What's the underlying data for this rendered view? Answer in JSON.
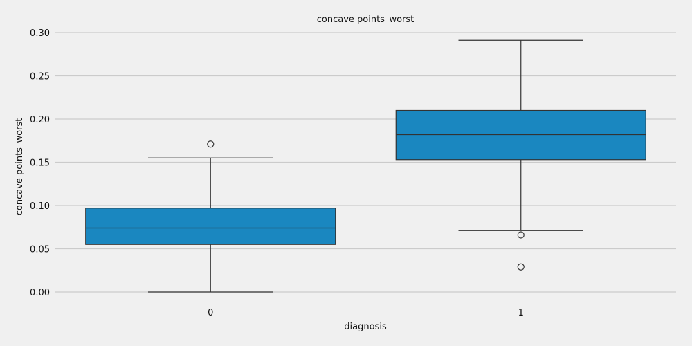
{
  "chart_data": {
    "type": "box",
    "title": "concave points_worst",
    "xlabel": "diagnosis",
    "ylabel": "concave points_worst",
    "ylim": [
      -0.02,
      0.305
    ],
    "yticks": [
      0.0,
      0.05,
      0.1,
      0.15,
      0.2,
      0.25,
      0.3
    ],
    "ytick_labels": [
      "0.00",
      "0.05",
      "0.10",
      "0.15",
      "0.20",
      "0.25",
      "0.30"
    ],
    "grid": "horizontal",
    "box_color": "#1a87c0",
    "categories": [
      "0",
      "1"
    ],
    "boxes": [
      {
        "category": "0",
        "whisker_low": 0.0,
        "q1": 0.055,
        "median": 0.074,
        "q3": 0.097,
        "whisker_high": 0.155,
        "outliers": [
          0.171
        ]
      },
      {
        "category": "1",
        "whisker_low": 0.071,
        "q1": 0.153,
        "median": 0.182,
        "q3": 0.21,
        "whisker_high": 0.291,
        "outliers": [
          0.066,
          0.029
        ]
      }
    ]
  }
}
